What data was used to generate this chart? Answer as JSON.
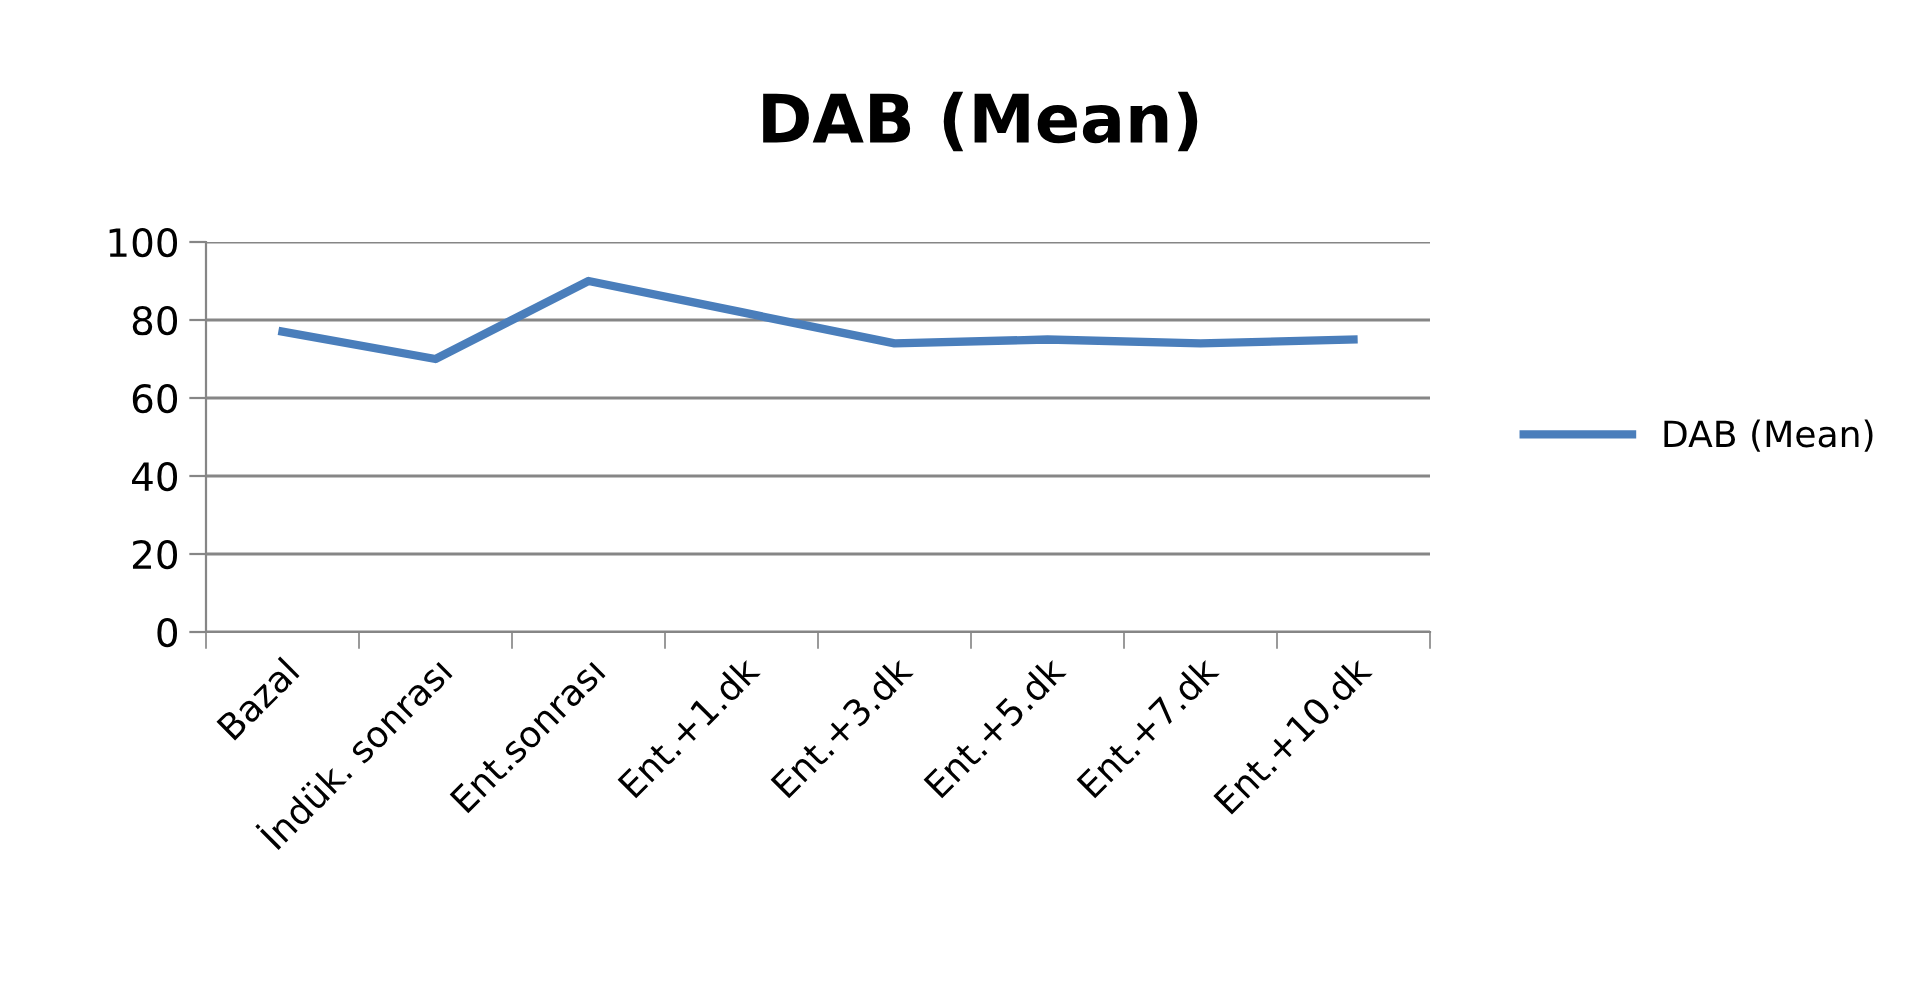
{
  "chart_data": {
    "type": "line",
    "title": "DAB (Mean)",
    "categories": [
      "Bazal",
      "İndük. sonrası",
      "Ent.sonrası",
      "Ent.+1.dk",
      "Ent.+3.dk",
      "Ent.+5.dk",
      "Ent.+7.dk",
      "Ent.+10.dk"
    ],
    "series": [
      {
        "name": "DAB (Mean)",
        "color": "#4a7ebb",
        "values": [
          77,
          70,
          90,
          82,
          74,
          75,
          74,
          75
        ]
      }
    ],
    "ylim": [
      0,
      100
    ],
    "yticks": [
      0,
      20,
      40,
      60,
      80,
      100
    ],
    "grid": "y",
    "legend": "right",
    "marker": "none",
    "line_style": "solid"
  }
}
